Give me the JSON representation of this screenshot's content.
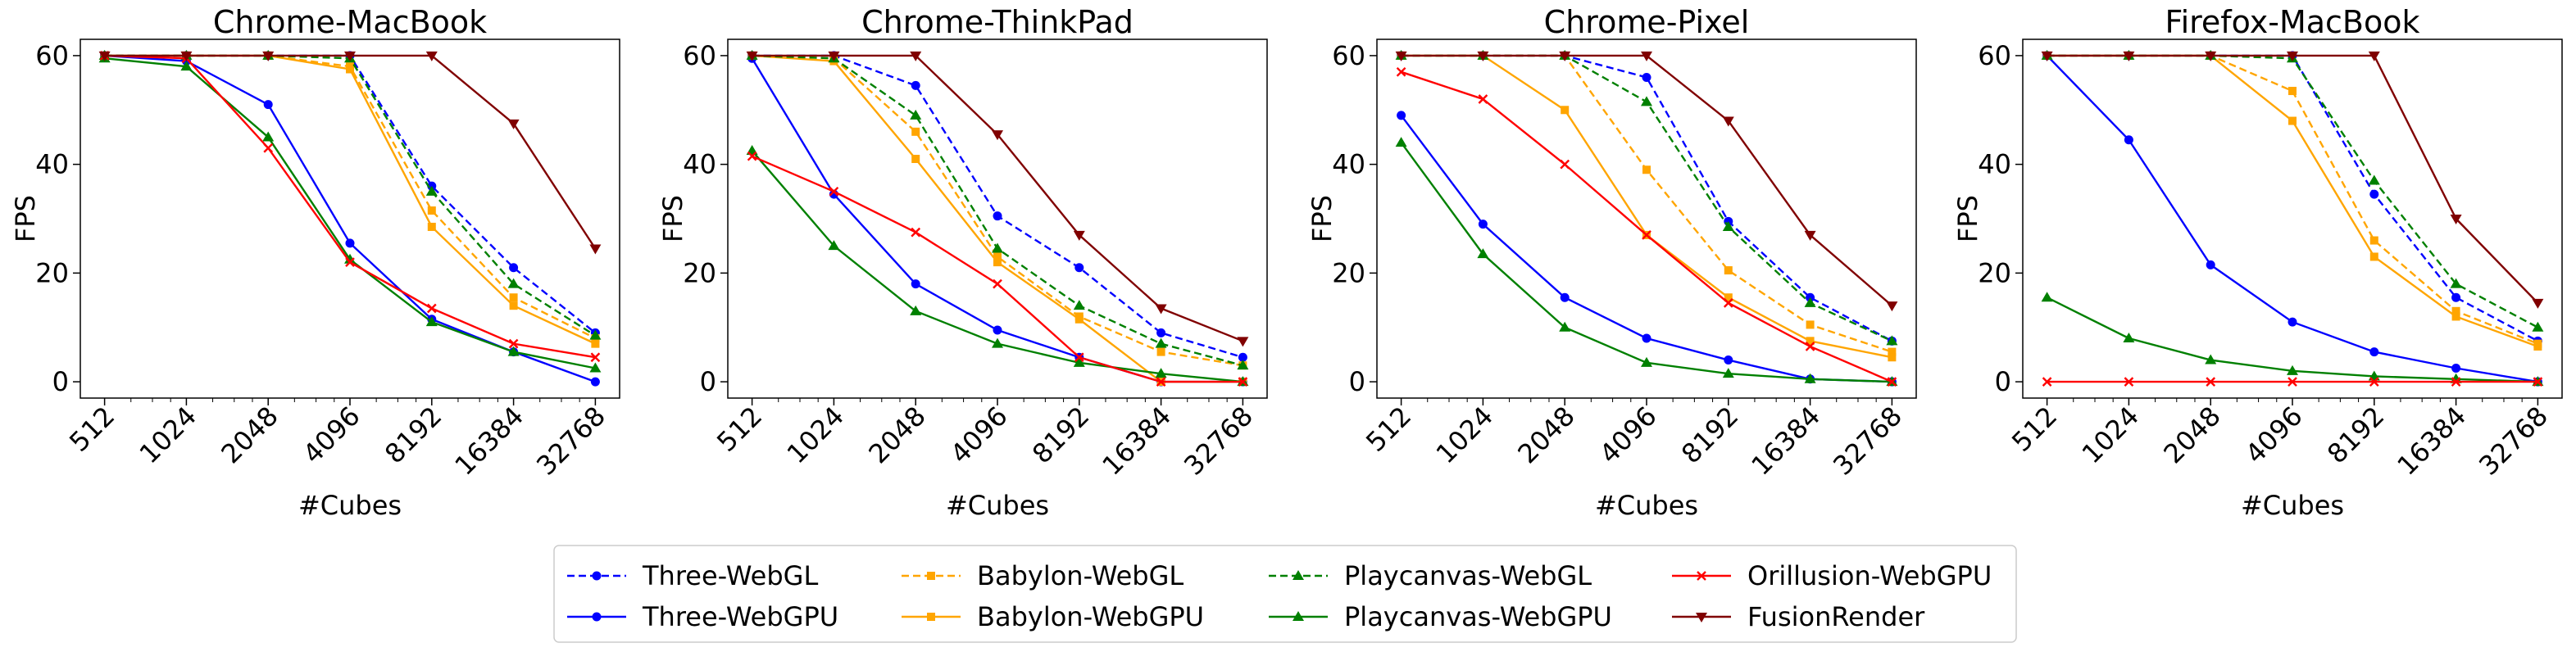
{
  "chart_data": {
    "type": "line",
    "ylabel": "FPS",
    "xlabel": "#Cubes",
    "x": [
      512,
      1024,
      2048,
      4096,
      8192,
      16384,
      32768
    ],
    "x_scale": "log2",
    "ylim": [
      -3,
      63
    ],
    "yticks": [
      0,
      20,
      40,
      60
    ],
    "grid": false,
    "legend_position": "bottom-center",
    "series_styles": [
      {
        "name": "Three-WebGL",
        "color": "#0000ff",
        "dash": "dashed",
        "marker": "circle"
      },
      {
        "name": "Three-WebGPU",
        "color": "#0000ff",
        "dash": "solid",
        "marker": "circle"
      },
      {
        "name": "Babylon-WebGL",
        "color": "#ffa500",
        "dash": "dashed",
        "marker": "square"
      },
      {
        "name": "Babylon-WebGPU",
        "color": "#ffa500",
        "dash": "solid",
        "marker": "square"
      },
      {
        "name": "Playcanvas-WebGL",
        "color": "#008000",
        "dash": "dashed",
        "marker": "triangle-up"
      },
      {
        "name": "Playcanvas-WebGPU",
        "color": "#008000",
        "dash": "solid",
        "marker": "triangle-up"
      },
      {
        "name": "Orillusion-WebGPU",
        "color": "#ff0000",
        "dash": "solid",
        "marker": "x"
      },
      {
        "name": "FusionRender",
        "color": "#800000",
        "dash": "solid",
        "marker": "triangle-down"
      }
    ],
    "panels": [
      {
        "title": "Chrome-MacBook",
        "series": [
          {
            "name": "Three-WebGL",
            "values": [
              60,
              60,
              60,
              60,
              36,
              21,
              9
            ]
          },
          {
            "name": "Three-WebGPU",
            "values": [
              60,
              59,
              51,
              25.5,
              11.5,
              5.5,
              0
            ]
          },
          {
            "name": "Babylon-WebGL",
            "values": [
              60,
              60,
              60,
              58,
              31.5,
              15.5,
              8
            ]
          },
          {
            "name": "Babylon-WebGPU",
            "values": [
              60,
              60,
              60,
              57.5,
              28.5,
              14,
              7
            ]
          },
          {
            "name": "Playcanvas-WebGL",
            "values": [
              60,
              60,
              60,
              59.5,
              35,
              18,
              8.5
            ]
          },
          {
            "name": "Playcanvas-WebGPU",
            "values": [
              59.5,
              58,
              45,
              22.5,
              11,
              5.5,
              2.5
            ]
          },
          {
            "name": "Orillusion-WebGPU",
            "values": [
              60,
              59.5,
              43,
              22,
              13.5,
              7,
              4.5
            ]
          },
          {
            "name": "FusionRender",
            "values": [
              60,
              60,
              60,
              60,
              60,
              47.5,
              24.5
            ]
          }
        ]
      },
      {
        "title": "Chrome-ThinkPad",
        "series": [
          {
            "name": "Three-WebGL",
            "values": [
              60,
              60,
              54.5,
              30.5,
              21,
              9,
              4.5
            ]
          },
          {
            "name": "Three-WebGPU",
            "values": [
              59.5,
              34.5,
              18,
              9.5,
              4.5,
              0,
              0
            ]
          },
          {
            "name": "Babylon-WebGL",
            "values": [
              60,
              59.5,
              46,
              23,
              12,
              5.5,
              3
            ]
          },
          {
            "name": "Babylon-WebGPU",
            "values": [
              60,
              59,
              41,
              22,
              11.5,
              0,
              0
            ]
          },
          {
            "name": "Playcanvas-WebGL",
            "values": [
              60,
              59.5,
              49,
              24.5,
              14,
              7,
              3
            ]
          },
          {
            "name": "Playcanvas-WebGPU",
            "values": [
              42.5,
              25,
              13,
              7,
              3.5,
              1.5,
              0
            ]
          },
          {
            "name": "Orillusion-WebGPU",
            "values": [
              41.5,
              35,
              27.5,
              18,
              4.5,
              0,
              0
            ]
          },
          {
            "name": "FusionRender",
            "values": [
              60,
              60,
              60,
              45.5,
              27,
              13.5,
              7.5
            ]
          }
        ]
      },
      {
        "title": "Chrome-Pixel",
        "series": [
          {
            "name": "Three-WebGL",
            "values": [
              60,
              60,
              60,
              56,
              29.5,
              15.5,
              7.5
            ]
          },
          {
            "name": "Three-WebGPU",
            "values": [
              49,
              29,
              15.5,
              8,
              4,
              0.5,
              0
            ]
          },
          {
            "name": "Babylon-WebGL",
            "values": [
              60,
              60,
              60,
              39,
              20.5,
              10.5,
              5.5
            ]
          },
          {
            "name": "Babylon-WebGPU",
            "values": [
              60,
              60,
              50,
              27,
              15.5,
              7.5,
              4.5
            ]
          },
          {
            "name": "Playcanvas-WebGL",
            "values": [
              60,
              60,
              60,
              51.5,
              28.5,
              14.5,
              7.5
            ]
          },
          {
            "name": "Playcanvas-WebGPU",
            "values": [
              44,
              23.5,
              10,
              3.5,
              1.5,
              0.5,
              0
            ]
          },
          {
            "name": "Orillusion-WebGPU",
            "values": [
              57,
              52,
              40,
              27,
              14.5,
              6.5,
              0
            ]
          },
          {
            "name": "FusionRender",
            "values": [
              60,
              60,
              60,
              60,
              48,
              27,
              14
            ]
          }
        ]
      },
      {
        "title": "Firefox-MacBook",
        "series": [
          {
            "name": "Three-WebGL",
            "values": [
              60,
              60,
              60,
              60,
              34.5,
              15.5,
              7.5
            ]
          },
          {
            "name": "Three-WebGPU",
            "values": [
              60,
              44.5,
              21.5,
              11,
              5.5,
              2.5,
              0
            ]
          },
          {
            "name": "Babylon-WebGL",
            "values": [
              60,
              60,
              60,
              53.5,
              26,
              13,
              7
            ]
          },
          {
            "name": "Babylon-WebGPU",
            "values": [
              60,
              60,
              60,
              48,
              23,
              12,
              6.5
            ]
          },
          {
            "name": "Playcanvas-WebGL",
            "values": [
              60,
              60,
              60,
              59.5,
              37,
              18,
              10
            ]
          },
          {
            "name": "Playcanvas-WebGPU",
            "values": [
              15.5,
              8,
              4,
              2,
              1,
              0.5,
              0
            ]
          },
          {
            "name": "Orillusion-WebGPU",
            "values": [
              0,
              0,
              0,
              0,
              0,
              0,
              0
            ]
          },
          {
            "name": "FusionRender",
            "values": [
              60,
              60,
              60,
              60,
              60,
              30,
              14.5
            ]
          }
        ]
      }
    ]
  }
}
